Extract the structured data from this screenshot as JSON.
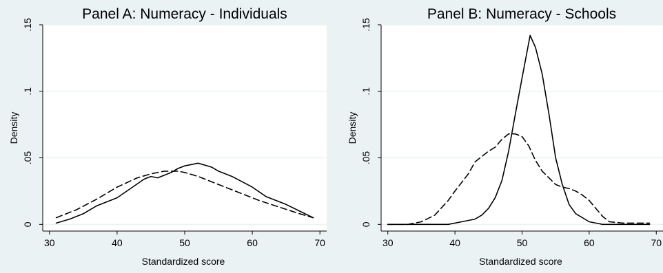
{
  "page": {
    "background": "#eaf2f3",
    "plot_background": "#ffffff",
    "grid_color": "#eaf2f3",
    "line_color": "#000000"
  },
  "chart_data": [
    {
      "type": "line",
      "title": "Panel A: Numeracy - Individuals",
      "xlabel": "Standardized score",
      "ylabel": "Density",
      "xlim": [
        29,
        71
      ],
      "ylim": [
        -0.005,
        0.15
      ],
      "xticks": [
        30,
        40,
        50,
        60,
        70
      ],
      "xtick_labels": [
        "30",
        "40",
        "50",
        "60",
        "70"
      ],
      "yticks": [
        0,
        0.05,
        0.1,
        0.15
      ],
      "ytick_labels": [
        "0",
        ".05",
        ".1",
        ".15"
      ],
      "grid": true,
      "legend": "none",
      "series": [
        {
          "style": "solid",
          "x": [
            31,
            33,
            35,
            37,
            39,
            40,
            42,
            44,
            45,
            46,
            47,
            48,
            49,
            50,
            52,
            54,
            55,
            57,
            60,
            62,
            65,
            67,
            69
          ],
          "y": [
            0.001,
            0.004,
            0.008,
            0.014,
            0.018,
            0.02,
            0.027,
            0.034,
            0.036,
            0.035,
            0.037,
            0.039,
            0.042,
            0.044,
            0.046,
            0.043,
            0.04,
            0.036,
            0.028,
            0.021,
            0.015,
            0.01,
            0.005
          ]
        },
        {
          "style": "dashed",
          "x": [
            31,
            34,
            37,
            40,
            43,
            45,
            47,
            49,
            50,
            52,
            55,
            58,
            61,
            64,
            67,
            69
          ],
          "y": [
            0.005,
            0.011,
            0.019,
            0.028,
            0.035,
            0.038,
            0.04,
            0.04,
            0.039,
            0.036,
            0.03,
            0.024,
            0.018,
            0.013,
            0.008,
            0.005
          ]
        }
      ]
    },
    {
      "type": "line",
      "title": "Panel B: Numeracy - Schools",
      "xlabel": "Standardized score",
      "ylabel": "Density",
      "xlim": [
        29,
        71
      ],
      "ylim": [
        -0.005,
        0.15
      ],
      "xticks": [
        30,
        40,
        50,
        60,
        70
      ],
      "xtick_labels": [
        "30",
        "40",
        "50",
        "60",
        "70"
      ],
      "yticks": [
        0,
        0.05,
        0.1,
        0.15
      ],
      "ytick_labels": [
        "0",
        ".05",
        ".1",
        ".15"
      ],
      "grid": true,
      "legend": "none",
      "series": [
        {
          "style": "solid",
          "x": [
            30,
            36,
            39,
            41,
            43,
            44,
            45,
            46,
            47,
            48,
            49,
            50,
            51.2,
            52,
            53,
            54,
            55,
            56,
            57,
            58,
            59,
            60,
            61,
            62,
            64,
            66,
            69
          ],
          "y": [
            0,
            0,
            0,
            0.002,
            0.004,
            0.007,
            0.012,
            0.02,
            0.033,
            0.055,
            0.083,
            0.11,
            0.142,
            0.133,
            0.113,
            0.083,
            0.05,
            0.03,
            0.015,
            0.008,
            0.005,
            0.002,
            0.001,
            0,
            0,
            0,
            0
          ]
        },
        {
          "style": "dashed",
          "x": [
            30,
            33,
            35,
            37,
            39,
            40,
            42,
            43,
            45,
            46,
            47,
            48,
            49,
            50,
            51,
            52,
            53,
            54,
            55,
            56,
            57,
            58,
            59,
            60,
            61,
            62,
            63,
            65,
            67,
            69
          ],
          "y": [
            0,
            0,
            0.002,
            0.007,
            0.018,
            0.025,
            0.038,
            0.047,
            0.055,
            0.058,
            0.064,
            0.068,
            0.068,
            0.066,
            0.059,
            0.048,
            0.04,
            0.035,
            0.03,
            0.028,
            0.027,
            0.025,
            0.022,
            0.018,
            0.012,
            0.006,
            0.002,
            0.001,
            0.001,
            0.001
          ]
        }
      ]
    }
  ]
}
